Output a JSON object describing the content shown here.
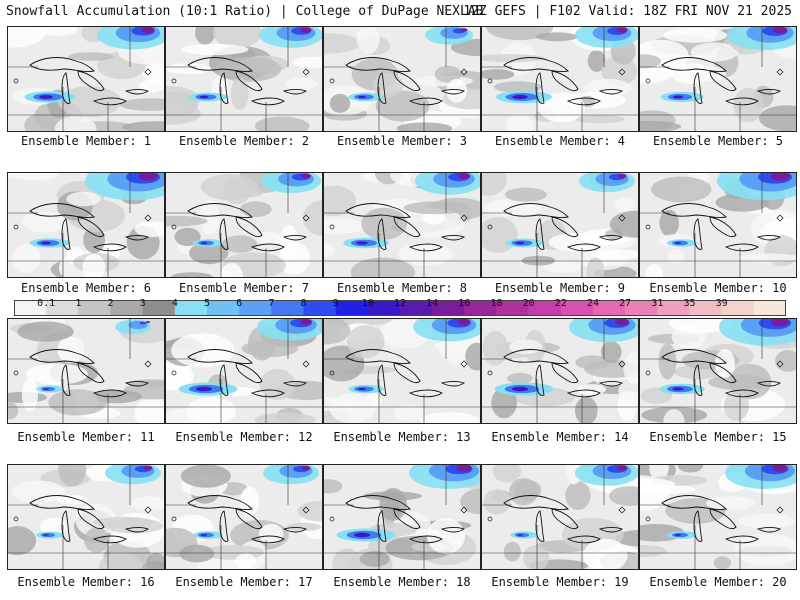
{
  "header": {
    "title": "Snowfall Accumulation (10:1 Ratio) | College of DuPage NEXLAB",
    "run_info": "12Z GEFS | F102 Valid: 18Z FRI NOV 21 2025"
  },
  "members": [
    {
      "label": "Ensemble Member: 1",
      "intensity": 0.75,
      "north": 0.65
    },
    {
      "label": "Ensemble Member: 2",
      "intensity": 0.5,
      "north": 0.55
    },
    {
      "label": "Ensemble Member: 3",
      "intensity": 0.45,
      "north": 0.35
    },
    {
      "label": "Ensemble Member: 4",
      "intensity": 0.85,
      "north": 0.55
    },
    {
      "label": "Ensemble Member: 5",
      "intensity": 0.6,
      "north": 0.7
    },
    {
      "label": "Ensemble Member: 6",
      "intensity": 0.55,
      "north": 0.95
    },
    {
      "label": "Ensemble Member: 7",
      "intensity": 0.35,
      "north": 0.5
    },
    {
      "label": "Ensemble Member: 8",
      "intensity": 0.65,
      "north": 0.6
    },
    {
      "label": "Ensemble Member: 9",
      "intensity": 0.5,
      "north": 0.45
    },
    {
      "label": "Ensemble Member: 10",
      "intensity": 0.35,
      "north": 0.95
    },
    {
      "label": "Ensemble Member: 11",
      "intensity": 0.3,
      "north": 0.2
    },
    {
      "label": "Ensemble Member: 12",
      "intensity": 0.9,
      "north": 0.6
    },
    {
      "label": "Ensemble Member: 13",
      "intensity": 0.45,
      "north": 0.65
    },
    {
      "label": "Ensemble Member: 14",
      "intensity": 0.9,
      "north": 0.7
    },
    {
      "label": "Ensemble Member: 15",
      "intensity": 0.65,
      "north": 0.9
    },
    {
      "label": "Ensemble Member: 16",
      "intensity": 0.3,
      "north": 0.45
    },
    {
      "label": "Ensemble Member: 17",
      "intensity": 0.35,
      "north": 0.45
    },
    {
      "label": "Ensemble Member: 18",
      "intensity": 0.9,
      "north": 0.75
    },
    {
      "label": "Ensemble Member: 19",
      "intensity": 0.3,
      "north": 0.55
    },
    {
      "label": "Ensemble Member: 20",
      "intensity": 0.35,
      "north": 0.75
    }
  ],
  "colorbar": {
    "labels": [
      "0.1",
      "1",
      "2",
      "3",
      "4",
      "5",
      "6",
      "7",
      "8",
      "9",
      "10",
      "12",
      "14",
      "16",
      "18",
      "20",
      "22",
      "24",
      "27",
      "31",
      "35",
      "39"
    ],
    "colors": [
      "#f4f4f4",
      "#dcdcdc",
      "#c4c4c4",
      "#a9a9a9",
      "#8e8e8e",
      "#86e0f2",
      "#6fc0f4",
      "#5aa0f4",
      "#4478f2",
      "#2c4ef0",
      "#1f22e6",
      "#3a18c8",
      "#5a1ab0",
      "#7a1c9c",
      "#9a249a",
      "#b0309e",
      "#c63ca8",
      "#d850b0",
      "#e468b2",
      "#ea80b6",
      "#eea0be",
      "#f2bcc4",
      "#f4d2ca",
      "#f8e6d6"
    ]
  }
}
